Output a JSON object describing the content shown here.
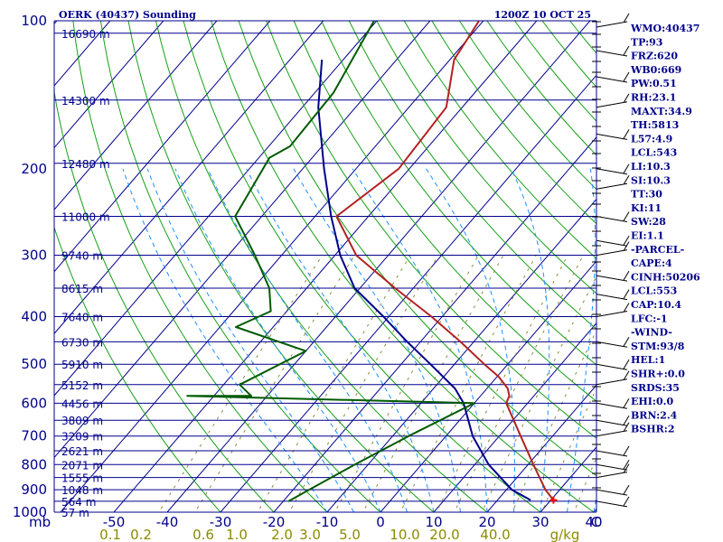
{
  "chart_data": {
    "type": "skew-t",
    "title_left": "OERK (40437) Sounding",
    "title_right": "1200Z 10 OCT 25",
    "pressure_ticks": [
      "100",
      "200",
      "300",
      "400",
      "500",
      "600",
      "700",
      "800",
      "900",
      "1000"
    ],
    "pressure_unit": "mb",
    "height_labels": [
      {
        "p": 106,
        "label": "16690 m"
      },
      {
        "p": 145,
        "label": "14300 m"
      },
      {
        "p": 195,
        "label": "12480 m"
      },
      {
        "p": 250,
        "label": "11000 m"
      },
      {
        "p": 300,
        "label": "9740 m"
      },
      {
        "p": 350,
        "label": "8615 m"
      },
      {
        "p": 400,
        "label": "7640 m"
      },
      {
        "p": 450,
        "label": "6730 m"
      },
      {
        "p": 500,
        "label": "5910 m"
      },
      {
        "p": 550,
        "label": "5152 m"
      },
      {
        "p": 600,
        "label": "4456 m"
      },
      {
        "p": 650,
        "label": "3809 m"
      },
      {
        "p": 700,
        "label": "3209 m"
      },
      {
        "p": 750,
        "label": "2621 m"
      },
      {
        "p": 800,
        "label": "2071 m"
      },
      {
        "p": 850,
        "label": "1555 m"
      },
      {
        "p": 900,
        "label": "1048 m"
      },
      {
        "p": 950,
        "label": "564 m"
      },
      {
        "p": 1000,
        "label": "57 m"
      }
    ],
    "temp_ticks": [
      "-50",
      "-40",
      "-30",
      "-20",
      "-10",
      "0",
      "10",
      "20",
      "30",
      "40",
      "C"
    ],
    "mixing_ratio_ticks": [
      "0.1",
      "0.2",
      "0.6",
      "1.0",
      "2.0",
      "3.0",
      "5.0",
      "10.0",
      "20.0",
      "40.0",
      "g/kg"
    ],
    "temperature": {
      "name": "Temperature",
      "color": "#b22222",
      "points": [
        [
          100,
          -60.8
        ],
        [
          120,
          -59.2
        ],
        [
          150,
          -53.0
        ],
        [
          200,
          -52.0
        ],
        [
          250,
          -56.0
        ],
        [
          300,
          -46.0
        ],
        [
          350,
          -33.4
        ],
        [
          400,
          -22.0
        ],
        [
          450,
          -12.5
        ],
        [
          500,
          -4.4
        ],
        [
          530,
          0.3
        ],
        [
          560,
          3.9
        ],
        [
          580,
          5.4
        ],
        [
          600,
          6.0
        ],
        [
          700,
          14.0
        ],
        [
          800,
          21.0
        ],
        [
          900,
          27.3
        ],
        [
          945,
          30.5
        ]
      ]
    },
    "dewpoint": {
      "name": "Dewpoint",
      "color": "#005a00",
      "points": [
        [
          100,
          -80.5
        ],
        [
          140,
          -76.5
        ],
        [
          180,
          -76.0
        ],
        [
          190,
          -78.0
        ],
        [
          250,
          -75.0
        ],
        [
          300,
          -65.0
        ],
        [
          350,
          -57.0
        ],
        [
          390,
          -53.0
        ],
        [
          420,
          -57.0
        ],
        [
          470,
          -40.0
        ],
        [
          550,
          -47.0
        ],
        [
          580,
          -43.0
        ],
        [
          580,
          -55.0
        ],
        [
          600,
          0.0
        ],
        [
          700,
          -7.0
        ],
        [
          800,
          -12.5
        ],
        [
          900,
          -17.0
        ],
        [
          950,
          -19.0
        ]
      ]
    },
    "parcel": {
      "name": "Parcel",
      "color": "#00008b",
      "points": [
        [
          120,
          -84.0
        ],
        [
          150,
          -77.0
        ],
        [
          200,
          -66.0
        ],
        [
          250,
          -57.0
        ],
        [
          300,
          -49.0
        ],
        [
          350,
          -41.0
        ],
        [
          400,
          -31.0
        ],
        [
          450,
          -22.5
        ],
        [
          500,
          -14.5
        ],
        [
          560,
          -6.0
        ],
        [
          600,
          -2.0
        ],
        [
          700,
          5.0
        ],
        [
          800,
          12.6
        ],
        [
          900,
          21.0
        ],
        [
          945,
          26.2
        ]
      ]
    },
    "wind_barbs_pressures": [
      103,
      115,
      130,
      150,
      170,
      200,
      220,
      250,
      280,
      300,
      330,
      360,
      400,
      450,
      500,
      550,
      600,
      650,
      700,
      750,
      800,
      850,
      900,
      950
    ]
  },
  "indices": [
    "WMO:40437",
    "TP:93",
    "FRZ:620",
    "WB0:669",
    "PW:0.51",
    "RH:23.1",
    "MAXT:34.9",
    "TH:5813",
    "L57:4.9",
    "LCL:543",
    "LI:10.3",
    "SI:10.3",
    "TT:30",
    "KI:11",
    "SW:28",
    "EI:1.1",
    "-PARCEL-",
    "CAPE:4",
    "CINH:50206",
    "LCL:553",
    "CAP:10.4",
    "LFC:-1",
    "-WIND-",
    "STM:93/8",
    "HEL:1",
    "SHR+:0.0",
    "SRDS:35",
    "EHI:0.0",
    "BRN:2.4",
    "BSHR:2"
  ],
  "colors": {
    "isobar": "#00008b",
    "isotherm": "#00008b",
    "dry_adiabat": "#16a016",
    "moist_adiabat": "#1e90ff",
    "mixing_ratio": "#8b8b40"
  }
}
